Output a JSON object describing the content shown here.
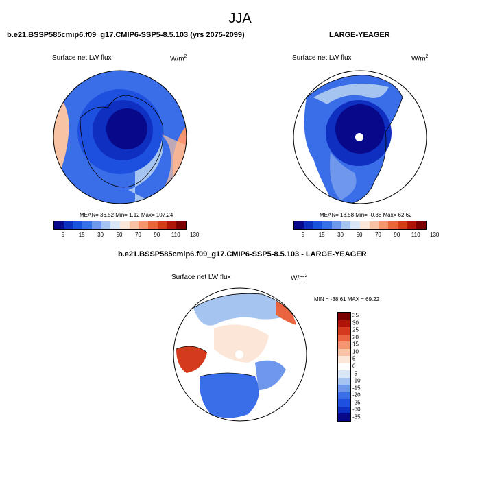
{
  "season": "JJA",
  "panels": [
    {
      "title": "b.e21.BSSP585cmip6.f09_g17.CMIP6-SSP5-8.5.103 (yrs 2075-2099)",
      "variable": "Surface net LW flux",
      "units": "W/m",
      "units_sup": "2",
      "stats": "MEAN=  36.52  Min=   1.12  Max= 107.24"
    },
    {
      "title": "LARGE-YEAGER",
      "variable": "Surface net LW flux",
      "units": "W/m",
      "units_sup": "2",
      "stats": "MEAN=  18.58  Min=  -0.38  Max=  62.62"
    },
    {
      "title": "b.e21.BSSP585cmip6.f09_g17.CMIP6-SSP5-8.5.103 - LARGE-YEAGER",
      "variable": "Surface net LW flux",
      "units": "W/m",
      "units_sup": "2",
      "stats": "MIN = -38.61 MAX =  69.22"
    }
  ],
  "colorbar_abs": {
    "colors": [
      "#08088a",
      "#0f2fc0",
      "#1e50e0",
      "#3a6de8",
      "#6f97ec",
      "#a6c4f0",
      "#d8e6f6",
      "#fbe6d8",
      "#f8c2a4",
      "#f49470",
      "#ea6440",
      "#d43a1c",
      "#b01408",
      "#7a0000"
    ],
    "tick_labels": [
      "5",
      "15",
      "30",
      "50",
      "70",
      "90",
      "110",
      "130"
    ]
  },
  "colorbar_diff": {
    "colors": [
      "#7a0000",
      "#b01408",
      "#d43a1c",
      "#ea6440",
      "#f49470",
      "#f8c2a4",
      "#fbe6d8",
      "#ffffff",
      "#d8e6f6",
      "#a6c4f0",
      "#6f97ec",
      "#3a6de8",
      "#1e50e0",
      "#0f2fc0",
      "#08088a"
    ],
    "tick_labels": [
      "35",
      "30",
      "25",
      "20",
      "15",
      "10",
      "5",
      "0",
      "-5",
      "-10",
      "-15",
      "-20",
      "-25",
      "-30",
      "-35"
    ]
  },
  "map_colors": {
    "deep": "#08088a",
    "dark": "#0f2fc0",
    "mid": "#1e50e0",
    "medium": "#3a6de8",
    "light": "#6f97ec",
    "pale": "#a6c4f0",
    "faint": "#d8e6f6",
    "warm1": "#fbe6d8",
    "warm2": "#f8c2a4",
    "warm3": "#f49470",
    "warm4": "#ea6440",
    "hot": "#d43a1c"
  }
}
